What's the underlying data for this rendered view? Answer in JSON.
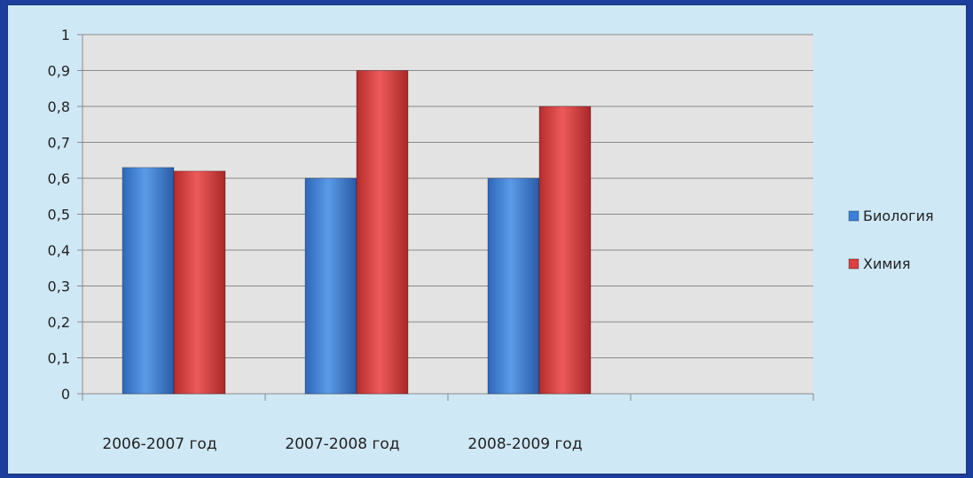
{
  "chart_data": {
    "type": "bar",
    "categories": [
      "2006-2007 год",
      "2007-2008 год",
      "2008-2009 год",
      ""
    ],
    "series": [
      {
        "name": "Биология",
        "values": [
          0.63,
          0.6,
          0.6,
          null
        ],
        "color": "#3b7fd6"
      },
      {
        "name": "Химия",
        "values": [
          0.62,
          0.9,
          0.8,
          null
        ],
        "color": "#d94040"
      }
    ],
    "y_ticks": [
      "0",
      "0,1",
      "0,2",
      "0,3",
      "0,4",
      "0,5",
      "0,6",
      "0,7",
      "0,8",
      "0,9",
      "1"
    ],
    "ylim": [
      0,
      1
    ],
    "grid": true,
    "legend_position": "right",
    "colors": {
      "background": "#cfe8f6",
      "plot_area": "#e3e3e3",
      "gridline": "#8a8a8a",
      "border": "#1b3a8a",
      "page": "#1c3f9e"
    }
  }
}
